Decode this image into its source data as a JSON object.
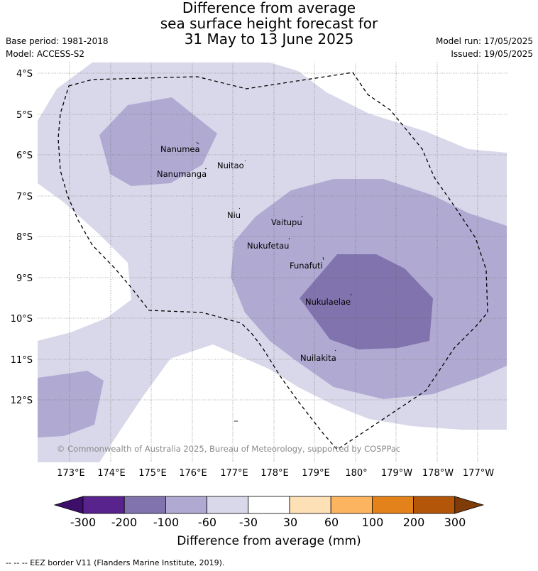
{
  "title": {
    "line1": "Difference from average",
    "line2": "sea surface height forecast for",
    "line3": "31 May to 13 June 2025"
  },
  "meta_left": {
    "base_period": "Base period: 1981-2018",
    "model": "Model: ACCESS-S2"
  },
  "meta_right": {
    "model_run": "Model run: 17/05/2025",
    "issued": "Issued: 19/05/2025"
  },
  "map": {
    "lat_labels": [
      "4°S",
      "5°S",
      "6°S",
      "7°S",
      "8°S",
      "9°S",
      "10°S",
      "11°S",
      "12°S"
    ],
    "lon_labels": [
      "173°E",
      "174°E",
      "175°E",
      "176°E",
      "177°E",
      "178°E",
      "179°E",
      "180°",
      "179°W",
      "178°W",
      "177°W"
    ],
    "places": [
      {
        "name": "Nanumea"
      },
      {
        "name": "Nanumanga"
      },
      {
        "name": "Nuitao"
      },
      {
        "name": "Niu"
      },
      {
        "name": "Vaitupu"
      },
      {
        "name": "Nukufetau"
      },
      {
        "name": "Funafuti"
      },
      {
        "name": "Nukulaelae"
      },
      {
        "name": "Nuilakita"
      }
    ],
    "copyright": "© Commonwealth of Australia 2025, Bureau of Meteorology, supported by COSPPac",
    "colors": {
      "band_minus60_minus30": "#d8d8ea",
      "band_minus100_minus60": "#b0aad2",
      "band_minus200_minus100": "#8073ae",
      "ocean_white": "#ffffff"
    }
  },
  "colorbar": {
    "ticks": [
      "-300",
      "-200",
      "-100",
      "-60",
      "-30",
      "30",
      "60",
      "100",
      "200",
      "300"
    ],
    "colors": [
      "#3d0f6b",
      "#58238c",
      "#8073ae",
      "#b0aad2",
      "#d8d8ea",
      "#ffffff",
      "#fde0b6",
      "#fdb461",
      "#e3821b",
      "#b3560a",
      "#7f3b08"
    ],
    "label": "Difference from average (mm)"
  },
  "footnote": "--  --  -- EEZ border V11 (Flanders Marine Institute, 2019)."
}
